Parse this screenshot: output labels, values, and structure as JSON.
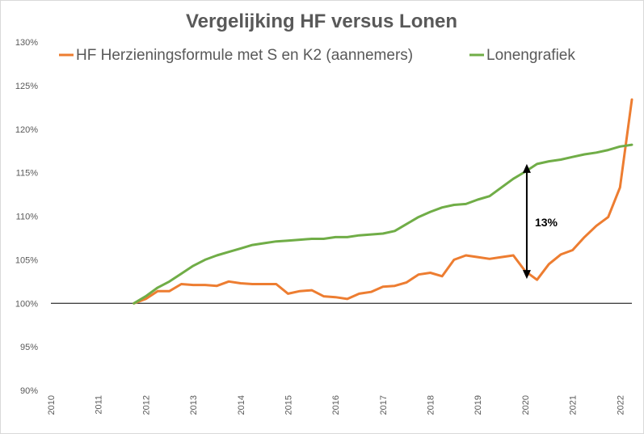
{
  "chart_data": {
    "type": "line",
    "title": "Vergelijking HF versus Lonen",
    "xlabel": "",
    "ylabel": "",
    "ylim": [
      0.9,
      1.3
    ],
    "xlim": [
      2010,
      2022.25
    ],
    "y_ticks": [
      "90%",
      "95%",
      "100%",
      "105%",
      "110%",
      "115%",
      "120%",
      "125%",
      "130%"
    ],
    "x_ticks": [
      "2010",
      "2011",
      "2012",
      "2013",
      "2014",
      "2015",
      "2016",
      "2017",
      "2018",
      "2019",
      "2020",
      "2021",
      "2022"
    ],
    "grid": false,
    "legend_position": "top",
    "series": [
      {
        "name": "HF Herzieningsformule met S en K2 (aannemers)",
        "color": "#ed7d31",
        "x": [
          2011.75,
          2012.0,
          2012.25,
          2012.5,
          2012.75,
          2013.0,
          2013.25,
          2013.5,
          2013.75,
          2014.0,
          2014.25,
          2014.5,
          2014.75,
          2015.0,
          2015.25,
          2015.5,
          2015.75,
          2016.0,
          2016.25,
          2016.5,
          2016.75,
          2017.0,
          2017.25,
          2017.5,
          2017.75,
          2018.0,
          2018.25,
          2018.5,
          2018.75,
          2019.0,
          2019.25,
          2019.5,
          2019.75,
          2020.0,
          2020.25,
          2020.5,
          2020.75,
          2021.0,
          2021.25,
          2021.5,
          2021.75,
          2022.0,
          2022.25
        ],
        "values": [
          1.0,
          1.005,
          1.014,
          1.014,
          1.022,
          1.021,
          1.021,
          1.02,
          1.025,
          1.023,
          1.022,
          1.022,
          1.022,
          1.011,
          1.014,
          1.015,
          1.008,
          1.007,
          1.005,
          1.011,
          1.013,
          1.019,
          1.02,
          1.024,
          1.033,
          1.035,
          1.031,
          1.05,
          1.055,
          1.053,
          1.051,
          1.053,
          1.055,
          1.037,
          1.027,
          1.045,
          1.056,
          1.061,
          1.076,
          1.089,
          1.099,
          1.133,
          1.234
        ]
      },
      {
        "name": "Lonengrafiek",
        "color": "#70ad47",
        "x": [
          2011.75,
          2012.0,
          2012.25,
          2012.5,
          2012.75,
          2013.0,
          2013.25,
          2013.5,
          2013.75,
          2014.0,
          2014.25,
          2014.5,
          2014.75,
          2015.0,
          2015.25,
          2015.5,
          2015.75,
          2016.0,
          2016.25,
          2016.5,
          2016.75,
          2017.0,
          2017.25,
          2017.5,
          2017.75,
          2018.0,
          2018.25,
          2018.5,
          2018.75,
          2019.0,
          2019.25,
          2019.5,
          2019.75,
          2020.0,
          2020.25,
          2020.5,
          2020.75,
          2021.0,
          2021.25,
          2021.5,
          2021.75,
          2022.0,
          2022.25
        ],
        "values": [
          1.0,
          1.008,
          1.018,
          1.025,
          1.034,
          1.043,
          1.05,
          1.055,
          1.059,
          1.063,
          1.067,
          1.069,
          1.071,
          1.072,
          1.073,
          1.074,
          1.074,
          1.076,
          1.076,
          1.078,
          1.079,
          1.08,
          1.083,
          1.091,
          1.099,
          1.105,
          1.11,
          1.113,
          1.114,
          1.119,
          1.123,
          1.133,
          1.143,
          1.151,
          1.16,
          1.163,
          1.165,
          1.168,
          1.171,
          1.173,
          1.176,
          1.18,
          1.182
        ]
      }
    ],
    "baseline": {
      "value": 1.0,
      "color": "#000000"
    },
    "annotation": {
      "text": "13%",
      "x": 2020.0,
      "y_top": 1.16,
      "y_bottom": 1.028
    }
  }
}
